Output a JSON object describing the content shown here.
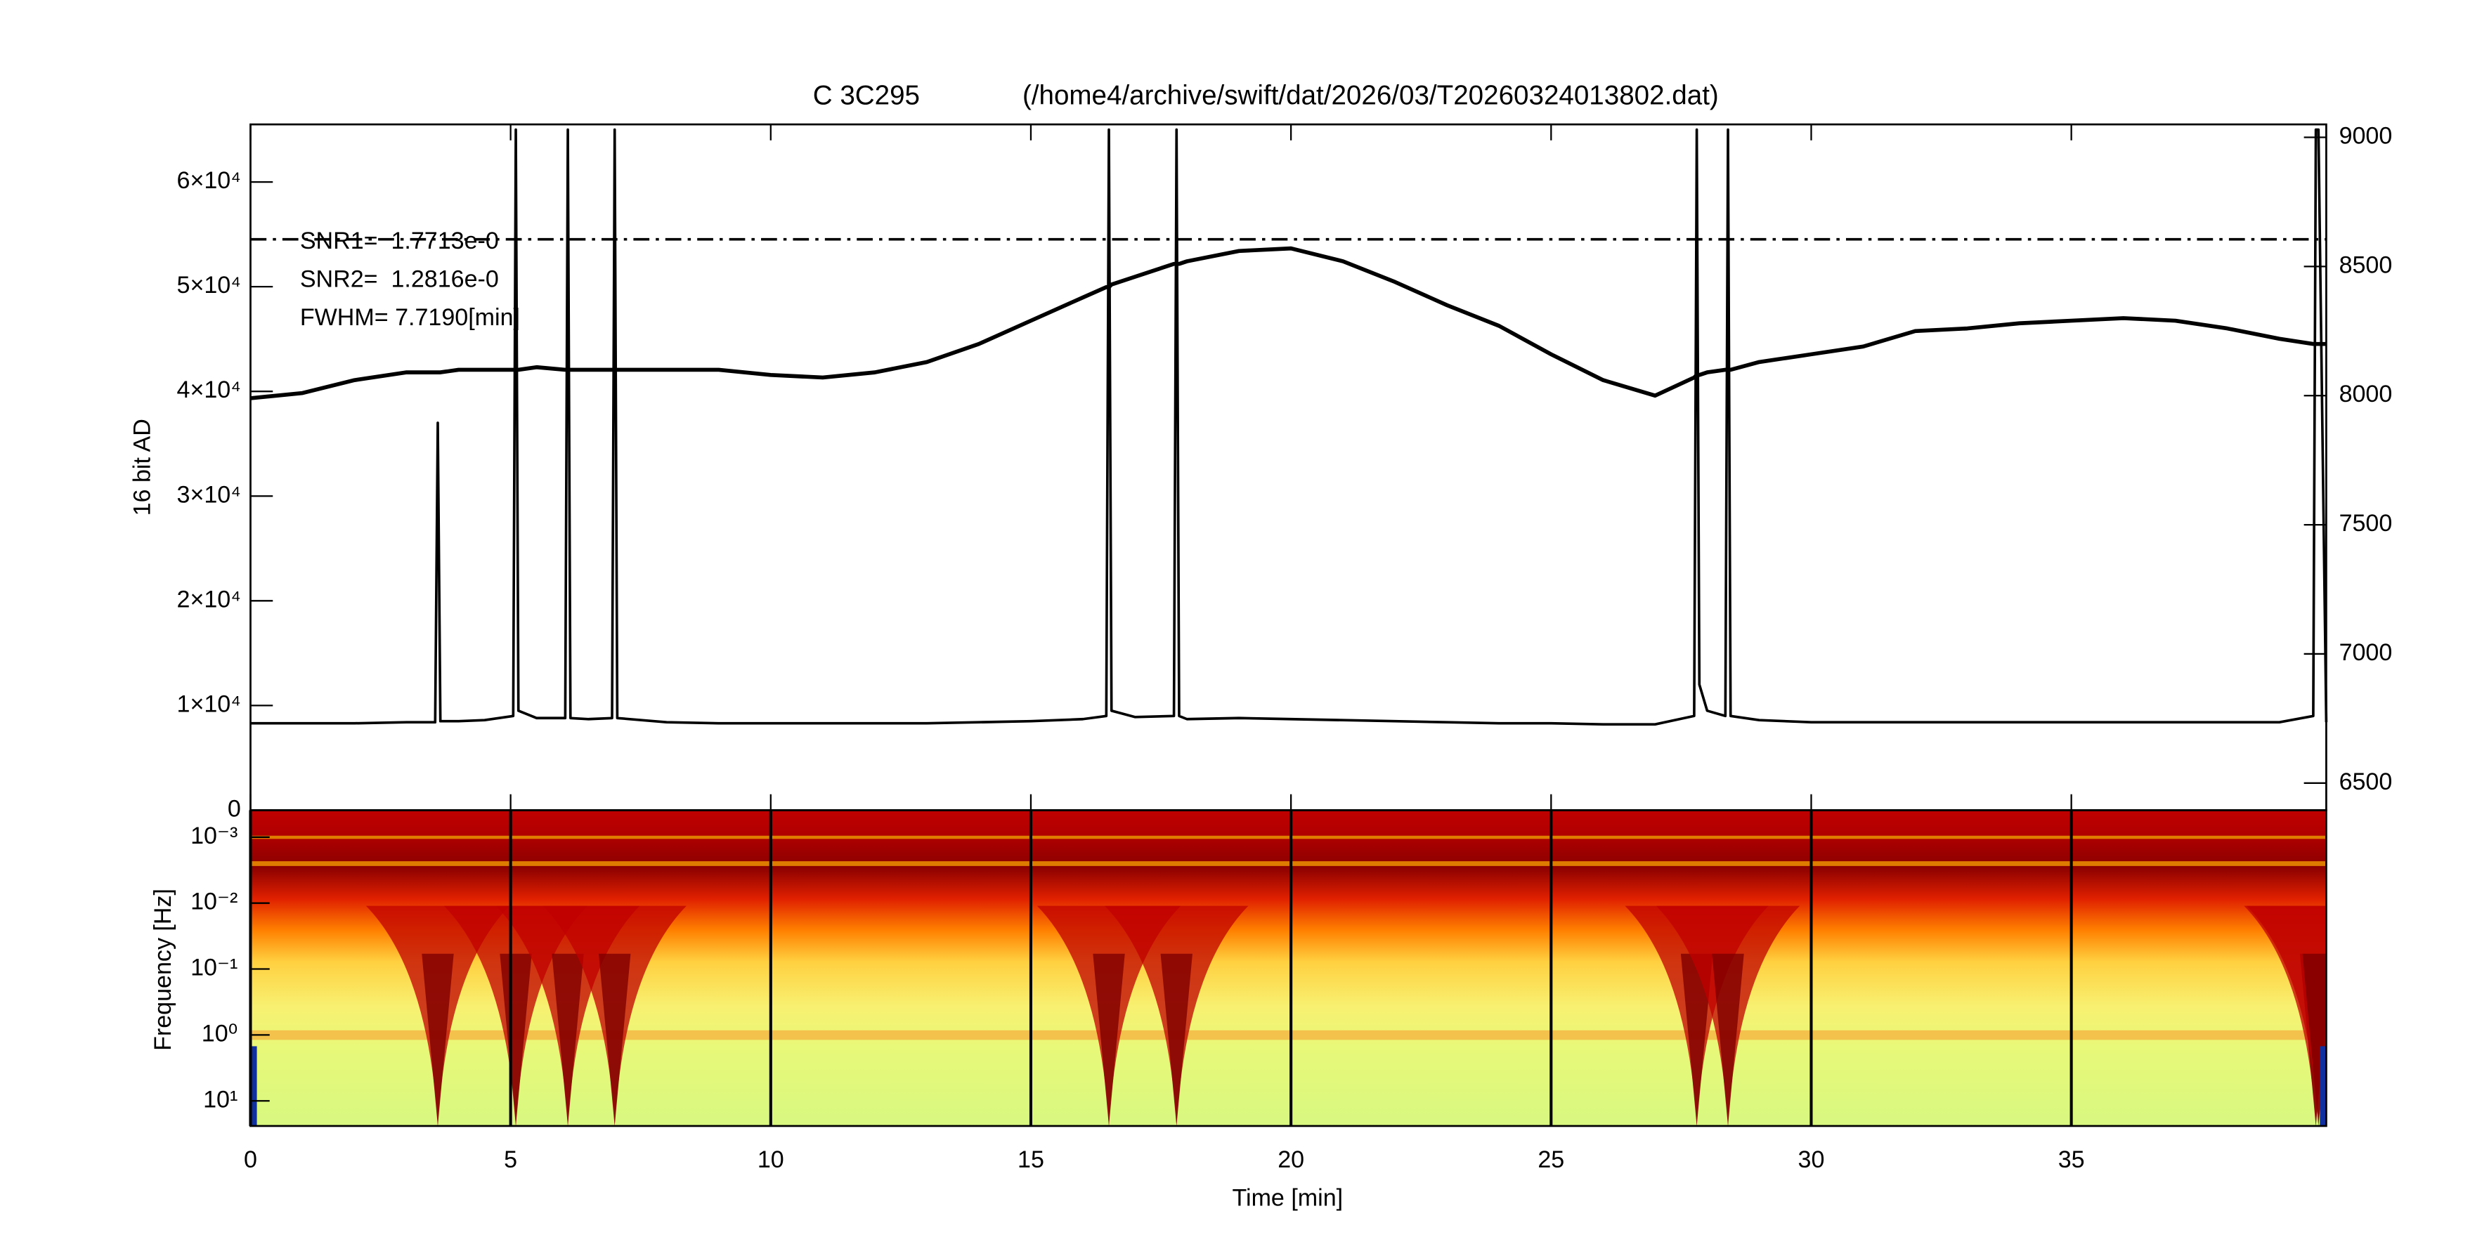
{
  "chart_data": [
    {
      "type": "line",
      "title": [
        "C 3C295",
        "(/home4/archive/swift/dat/2026/03/T20260324013802.dat)"
      ],
      "ylabel": "16 bit AD",
      "annotations": [
        "SNR1=  1.7713e-0",
        "SNR2=  1.2816e-0",
        "FWHM= 7.7190[min]"
      ],
      "xlim": [
        0,
        39.9
      ],
      "ylim": [
        0,
        65500
      ],
      "yticks": [
        {
          "value": 0,
          "label": "0"
        },
        {
          "value": 10000,
          "label": "1×10⁴"
        },
        {
          "value": 20000,
          "label": "2×10⁴"
        },
        {
          "value": 30000,
          "label": "3×10⁴"
        },
        {
          "value": 40000,
          "label": "4×10⁴"
        },
        {
          "value": 50000,
          "label": "5×10⁴"
        },
        {
          "value": 60000,
          "label": "6×10⁴"
        }
      ],
      "y2lim": [
        6395,
        9050
      ],
      "y2ticks": [
        6500,
        7000,
        7500,
        8000,
        8500,
        9000
      ],
      "hline": {
        "value": 8605,
        "axis": "y2"
      },
      "x": [
        0,
        1,
        2,
        3,
        3.55,
        3.6,
        3.65,
        4,
        4.5,
        5.05,
        5.1,
        5.15,
        5.5,
        6.05,
        6.1,
        6.15,
        6.5,
        6.95,
        7.0,
        7.05,
        8,
        9,
        10,
        11,
        12,
        13,
        14,
        15,
        16,
        16.45,
        16.5,
        16.55,
        17,
        17.75,
        17.8,
        17.85,
        18,
        19,
        20,
        21,
        22,
        23,
        24,
        25,
        26,
        27,
        27.75,
        27.8,
        27.85,
        28,
        28.35,
        28.4,
        28.45,
        29,
        30,
        31,
        32,
        33,
        34,
        35,
        36,
        37,
        38,
        39,
        39.65,
        39.7,
        39.75,
        39.9
      ],
      "series": [
        {
          "color": "#000000",
          "axis": "y2",
          "values": [
            7990,
            8010,
            8060,
            8090,
            8090,
            8090,
            8090,
            8100,
            8100,
            8100,
            8100,
            8100,
            8110,
            8100,
            8100,
            8100,
            8100,
            8100,
            8100,
            8100,
            8100,
            8100,
            8080,
            8070,
            8090,
            8130,
            8200,
            8290,
            8380,
            8420,
            8420,
            8430,
            8460,
            8510,
            8510,
            8510,
            8520,
            8560,
            8570,
            8520,
            8440,
            8350,
            8270,
            8160,
            8060,
            8000,
            8070,
            8080,
            8080,
            8090,
            8100,
            8100,
            8100,
            8130,
            8160,
            8190,
            8250,
            8260,
            8280,
            8290,
            8300,
            8290,
            8260,
            8220,
            8200,
            8200,
            8200,
            8200
          ]
        },
        {
          "color": "#000000",
          "values": [
            8300,
            8300,
            8300,
            8400,
            8400,
            37000,
            8500,
            8500,
            8600,
            9000,
            65000,
            9500,
            8800,
            8800,
            65000,
            8800,
            8700,
            8800,
            65000,
            8800,
            8400,
            8300,
            8300,
            8300,
            8300,
            8300,
            8400,
            8500,
            8700,
            9000,
            65000,
            9500,
            8900,
            9000,
            65000,
            9000,
            8700,
            8800,
            8700,
            8600,
            8500,
            8400,
            8300,
            8300,
            8200,
            8200,
            9000,
            65000,
            12000,
            9500,
            9000,
            65000,
            9000,
            8600,
            8400,
            8400,
            8400,
            8400,
            8400,
            8400,
            8400,
            8400,
            8400,
            8400,
            9000,
            65000,
            65000,
            8400
          ]
        }
      ]
    },
    {
      "type": "spectrogram",
      "xlabel": "Time [min]",
      "ylabel": "Frequency [Hz]",
      "xlim": [
        0,
        39.9
      ],
      "xticks": [
        0,
        5,
        10,
        15,
        20,
        25,
        30,
        35
      ],
      "ylim": [
        0.00039,
        24
      ],
      "log_y": true,
      "y_inverted": true,
      "yticks": [
        {
          "value": 0.001,
          "label": "10⁻³"
        },
        {
          "value": 0.01,
          "label": "10⁻²"
        },
        {
          "value": 0.1,
          "label": "10⁻¹"
        },
        {
          "value": 1,
          "label": "10⁰"
        },
        {
          "value": 10,
          "label": "10¹"
        }
      ],
      "grid": true
    }
  ]
}
